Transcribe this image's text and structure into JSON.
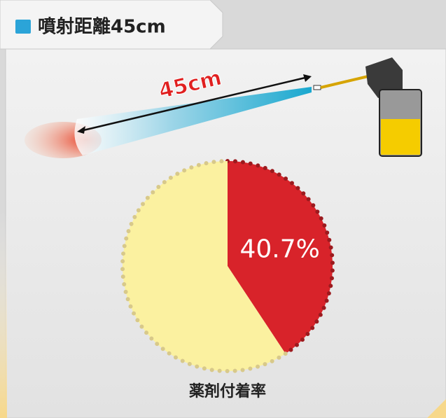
{
  "chart_data": {
    "type": "pie",
    "title": "噴射距離45cm",
    "distance_label": "45cm",
    "values": [
      40.7,
      59.3
    ],
    "value_labels": [
      "40.7%",
      null
    ],
    "colors": [
      "#d8232a",
      "#fbf1a0"
    ],
    "edge_colors": [
      "#9c1a1e",
      "#d8c98a"
    ],
    "label": "薬剤付着率"
  }
}
